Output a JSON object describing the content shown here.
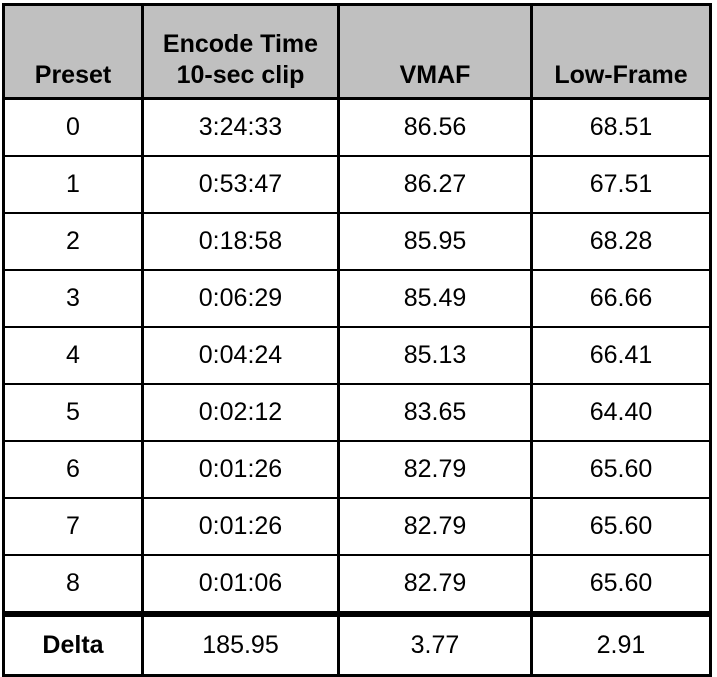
{
  "table": {
    "headers": [
      {
        "lines": [
          "Preset"
        ]
      },
      {
        "lines": [
          "Encode Time",
          "10-sec clip"
        ]
      },
      {
        "lines": [
          "VMAF"
        ]
      },
      {
        "lines": [
          "Low-Frame"
        ]
      }
    ],
    "rows": [
      [
        "0",
        "3:24:33",
        "86.56",
        "68.51"
      ],
      [
        "1",
        "0:53:47",
        "86.27",
        "67.51"
      ],
      [
        "2",
        "0:18:58",
        "85.95",
        "68.28"
      ],
      [
        "3",
        "0:06:29",
        "85.49",
        "66.66"
      ],
      [
        "4",
        "0:04:24",
        "85.13",
        "66.41"
      ],
      [
        "5",
        "0:02:12",
        "83.65",
        "64.40"
      ],
      [
        "6",
        "0:01:26",
        "82.79",
        "65.60"
      ],
      [
        "7",
        "0:01:26",
        "82.79",
        "65.60"
      ],
      [
        "8",
        "0:01:06",
        "82.79",
        "65.60"
      ]
    ],
    "footer": [
      "Delta",
      "185.95",
      "3.77",
      "2.91"
    ]
  },
  "colors": {
    "header_background": "#c0c0c0",
    "border": "#000000",
    "text": "#000000",
    "background": "#ffffff"
  }
}
